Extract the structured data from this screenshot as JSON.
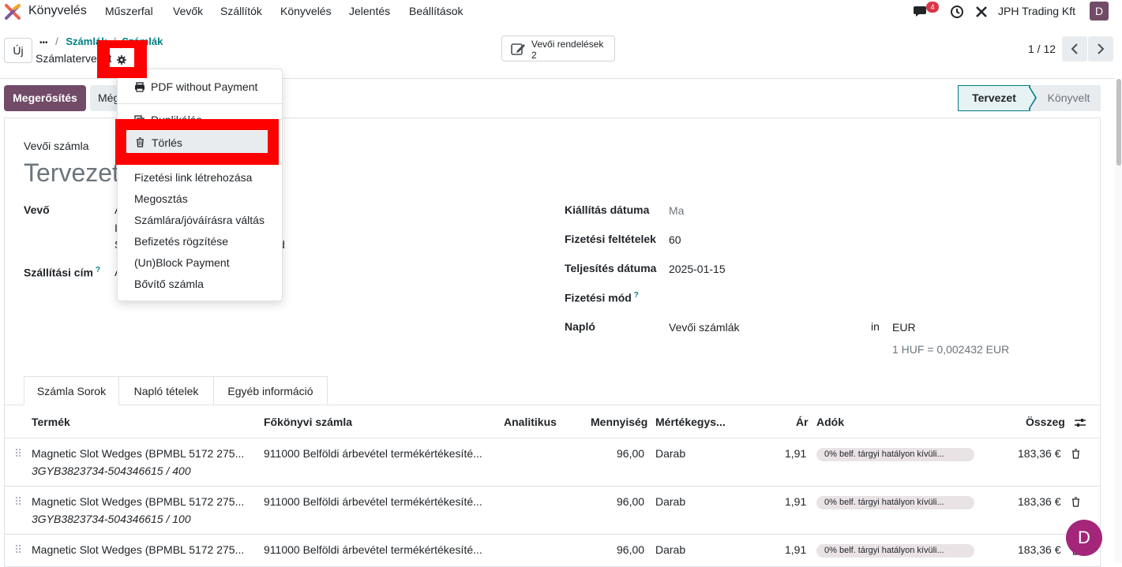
{
  "app": {
    "name": "Könyvelés",
    "menu": [
      "Műszerfal",
      "Vevők",
      "Szállítók",
      "Könyvelés",
      "Jelentés",
      "Beállítások"
    ],
    "message_count": "4",
    "company": "JPH Trading Kft",
    "user_initial": "D"
  },
  "control_panel": {
    "new_label": "Új",
    "breadcrumb_dots": "•••",
    "breadcrumb_separator": "/",
    "breadcrumb_items": [
      "Számlák",
      "Számlák"
    ],
    "record_name": "Számlatervezet",
    "smart_button_label": "Vevői rendelések",
    "smart_button_count": "2",
    "pager": "1 / 12"
  },
  "actions": {
    "confirm": "Megerősítés",
    "cancel_partial": "Még"
  },
  "status": {
    "draft": "Tervezet",
    "posted": "Könyvelt"
  },
  "dropdown": {
    "items": [
      "PDF without Payment",
      "Duplikálás",
      "Törlés",
      "Fizetési link létrehozása",
      "Megosztás",
      "Számlára/jóváírásra váltás",
      "Befizetés rögzítése",
      "(Un)Block Payment",
      "Bővítő számla"
    ]
  },
  "form": {
    "doc_type": "Vevői számla",
    "title": "Tervezet",
    "customer_label": "Vevő",
    "customer_lines": [
      "A",
      "I",
      "S",
      "d"
    ],
    "delivery_label": "Szállítási cím",
    "delivery_value": "A",
    "help_mark": "?",
    "invoice_date_label": "Kiállítás dátuma",
    "invoice_date_value": "Ma",
    "payment_terms_label": "Fizetési feltételek",
    "payment_terms_value": "60",
    "delivery_date_label": "Teljesítés dátuma",
    "delivery_date_value": "2025-01-15",
    "payment_method_label": "Fizetési mód",
    "journal_label": "Napló",
    "journal_value": "Vevői számlák",
    "in_label": "in",
    "currency": "EUR",
    "rate": "1 HUF = 0,002432 EUR"
  },
  "tabs": [
    "Számla Sorok",
    "Napló tételek",
    "Egyéb információ"
  ],
  "table": {
    "headers": {
      "product": "Termék",
      "account": "Főkönyvi számla",
      "analytic": "Analitikus",
      "quantity": "Mennyiség",
      "uom": "Mértékegys...",
      "price": "Ár",
      "taxes": "Adók",
      "total": "Összeg"
    },
    "rows": [
      {
        "product": "Magnetic Slot Wedges (BPMBL 5172 275...",
        "ref": "3GYB3823734-504346615 / 400",
        "account": "911000 Belföldi árbevétel termékértékesíté...",
        "qty": "96,00",
        "uom": "Darab",
        "price": "1,91",
        "tax": "0% belf. tárgyi hatályon kívüli...",
        "total": "183,36 €"
      },
      {
        "product": "Magnetic Slot Wedges (BPMBL 5172 275...",
        "ref": "3GYB3823734-504346615 / 100",
        "account": "911000 Belföldi árbevétel termékértékesíté...",
        "qty": "96,00",
        "uom": "Darab",
        "price": "1,91",
        "tax": "0% belf. tárgyi hatályon kívüli...",
        "total": "183,36 €"
      },
      {
        "product": "Magnetic Slot Wedges (BPMBL 5172 275...",
        "ref": "",
        "account": "911000 Belföldi árbevétel termékértékesíté...",
        "qty": "96,00",
        "uom": "Darab",
        "price": "1,91",
        "tax": "0% belf. tárgyi hatályon kívüli...",
        "total": "183,36 €"
      }
    ]
  },
  "colors": {
    "brand": "#714b67",
    "accent": "#017e84",
    "highlight": "#ff0000"
  }
}
